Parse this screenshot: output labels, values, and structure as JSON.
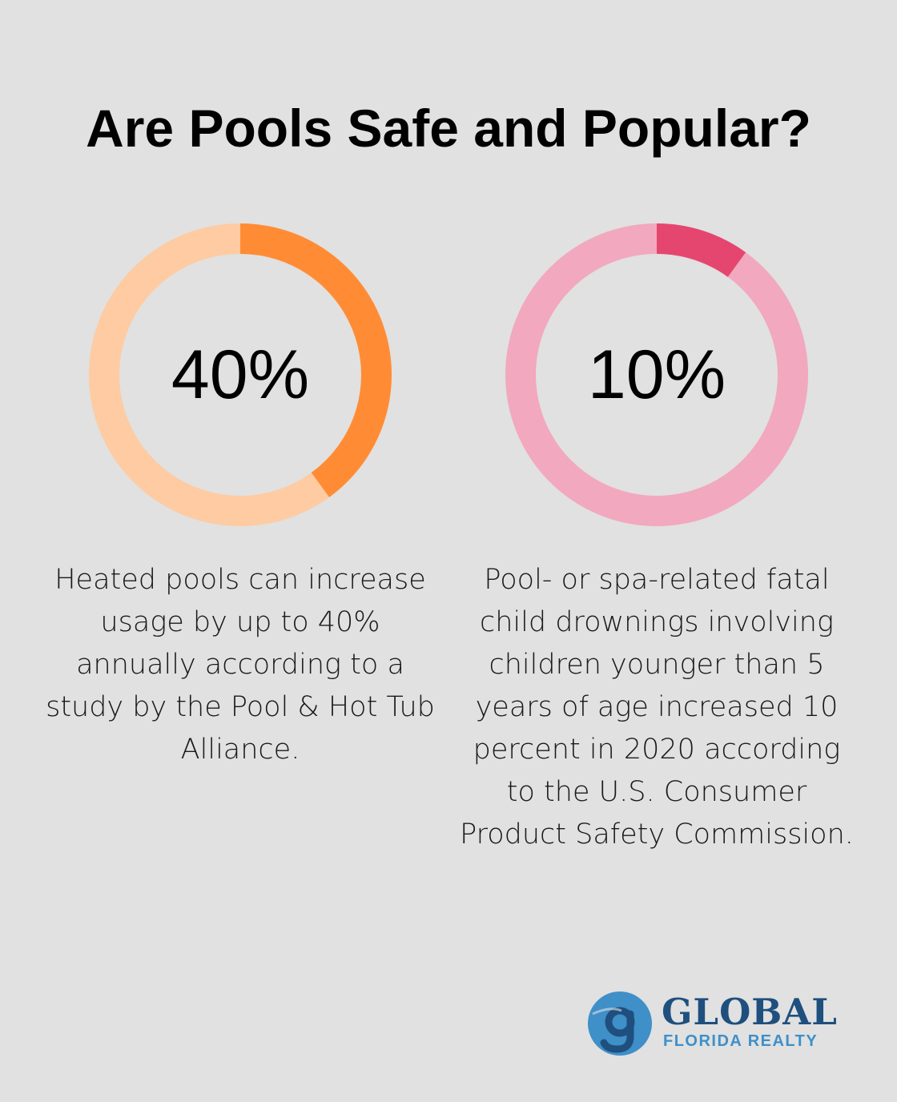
{
  "title": "Are Pools Safe and Popular?",
  "chart_data": [
    {
      "type": "pie",
      "style": "donut",
      "value": 40,
      "total": 100,
      "label": "40%",
      "description": "Heated pools can increase usage by up to 40% annually according to a study by the Pool & Hot Tub Alliance.",
      "colors": {
        "highlight": "#ff8c35",
        "remainder": "#ffcba2"
      }
    },
    {
      "type": "pie",
      "style": "donut",
      "value": 10,
      "total": 100,
      "label": "10%",
      "description": "Pool- or spa-related fatal child drownings involving children younger than 5 years of age increased 10 percent in 2020 according to the U.S. Consumer Product Safety Commission.",
      "colors": {
        "highlight": "#e5466f",
        "remainder": "#f2a8bf"
      }
    }
  ],
  "logo": {
    "mark": "g",
    "name": "GLOBAL",
    "tagline": "FLORIDA REALTY",
    "colors": {
      "primary": "#1f4f7e",
      "secondary": "#3f8fc9"
    }
  },
  "colors": {
    "background": "#e0e1e0",
    "text": "#000000"
  }
}
